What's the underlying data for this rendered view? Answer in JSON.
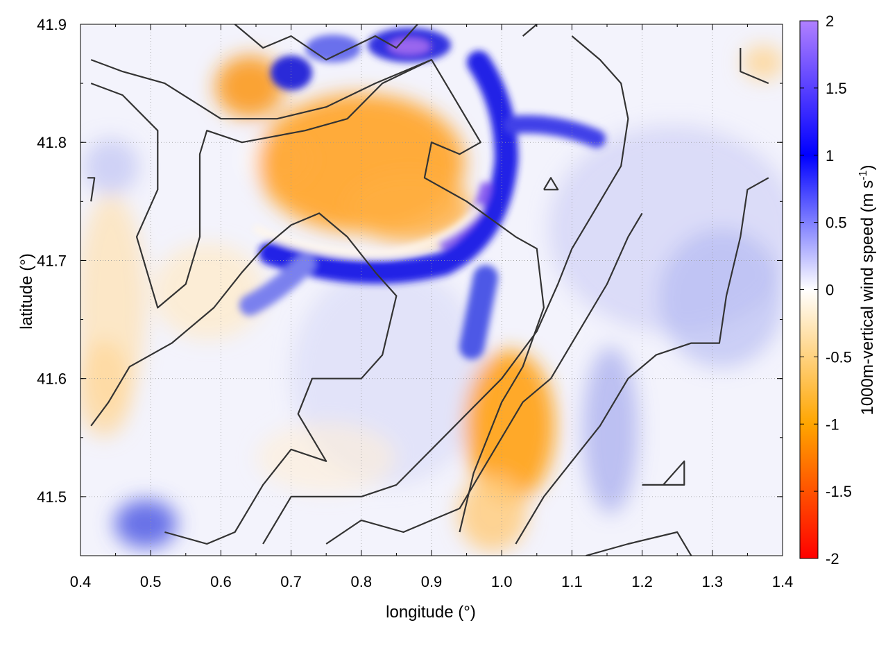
{
  "chart_data": {
    "type": "heatmap",
    "title": "",
    "xlabel": "longitude (°)",
    "ylabel": "latitude (°)",
    "xlim": [
      0.4,
      1.4
    ],
    "ylim": [
      41.45,
      41.9
    ],
    "x_ticks": [
      "0.4",
      "0.5",
      "0.6",
      "0.7",
      "0.8",
      "0.9",
      "1.0",
      "1.1",
      "1.2",
      "1.3",
      "1.4"
    ],
    "y_ticks": [
      "41.5",
      "41.6",
      "41.7",
      "41.8",
      "41.9"
    ],
    "grid": true,
    "colorbar": {
      "label_main": "1000m-vertical wind speed (m s",
      "label_sup": "-1",
      "label_close": ")",
      "range": [
        -2,
        2
      ],
      "ticks": [
        "-2",
        "-1.5",
        "-1",
        "-0.5",
        "0",
        "0.5",
        "1",
        "1.5",
        "2"
      ],
      "colors": [
        "#ff0000",
        "#ffa500",
        "#ffffff",
        "#0000ff",
        "#b080ff"
      ]
    },
    "features": {
      "circular_updraft_band": {
        "center_lon": 0.86,
        "center_lat": 41.81,
        "radius_deg": 0.13,
        "peak_w": 1.7
      },
      "downdraft_inside_ring": {
        "center_lon": 0.83,
        "center_lat": 41.79,
        "peak_w": -0.9
      },
      "downdraft_southeast": {
        "center_lon": 1.0,
        "center_lat": 41.58,
        "peak_w": -1.0
      },
      "updraft_north": {
        "center_lon": 0.86,
        "center_lat": 41.88,
        "peak_w": 1.7
      },
      "updraft_southwest": {
        "center_lon": 0.5,
        "center_lat": 41.47,
        "peak_w": 0.9
      }
    },
    "contours": [
      [
        [
          0.415,
          41.87
        ],
        [
          0.46,
          41.86
        ],
        [
          0.52,
          41.85
        ],
        [
          0.6,
          41.82
        ],
        [
          0.68,
          41.82
        ],
        [
          0.75,
          41.83
        ],
        [
          0.82,
          41.85
        ],
        [
          0.9,
          41.87
        ]
      ],
      [
        [
          0.415,
          41.85
        ],
        [
          0.46,
          41.84
        ],
        [
          0.51,
          41.81
        ],
        [
          0.51,
          41.76
        ],
        [
          0.48,
          41.72
        ],
        [
          0.51,
          41.66
        ],
        [
          0.55,
          41.68
        ],
        [
          0.57,
          41.72
        ],
        [
          0.57,
          41.79
        ],
        [
          0.58,
          41.81
        ],
        [
          0.63,
          41.8
        ],
        [
          0.72,
          41.81
        ],
        [
          0.78,
          41.82
        ],
        [
          0.83,
          41.85
        ],
        [
          0.9,
          41.87
        ],
        [
          0.93,
          41.84
        ],
        [
          0.97,
          41.8
        ],
        [
          0.94,
          41.79
        ],
        [
          0.9,
          41.8
        ],
        [
          0.89,
          41.77
        ],
        [
          0.95,
          41.75
        ],
        [
          1.02,
          41.72
        ],
        [
          1.05,
          41.71
        ],
        [
          1.06,
          41.66
        ],
        [
          1.03,
          41.61
        ],
        [
          1.0,
          41.58
        ],
        [
          0.96,
          41.52
        ],
        [
          0.94,
          41.47
        ]
      ],
      [
        [
          0.415,
          41.56
        ],
        [
          0.44,
          41.58
        ],
        [
          0.47,
          41.61
        ],
        [
          0.53,
          41.63
        ],
        [
          0.59,
          41.66
        ],
        [
          0.63,
          41.69
        ],
        [
          0.66,
          41.71
        ],
        [
          0.7,
          41.73
        ],
        [
          0.74,
          41.74
        ],
        [
          0.78,
          41.72
        ],
        [
          0.82,
          41.69
        ],
        [
          0.85,
          41.67
        ],
        [
          0.83,
          41.62
        ],
        [
          0.8,
          41.6
        ],
        [
          0.73,
          41.6
        ],
        [
          0.71,
          41.57
        ],
        [
          0.75,
          41.53
        ],
        [
          0.7,
          41.54
        ],
        [
          0.66,
          41.51
        ],
        [
          0.64,
          41.49
        ],
        [
          0.62,
          41.47
        ],
        [
          0.58,
          41.46
        ],
        [
          0.52,
          41.47
        ]
      ],
      [
        [
          0.62,
          41.9
        ],
        [
          0.66,
          41.88
        ],
        [
          0.7,
          41.89
        ],
        [
          0.75,
          41.87
        ],
        [
          0.82,
          41.89
        ],
        [
          0.85,
          41.88
        ],
        [
          0.88,
          41.9
        ]
      ],
      [
        [
          0.66,
          41.46
        ],
        [
          0.7,
          41.5
        ],
        [
          0.75,
          41.5
        ],
        [
          0.8,
          41.5
        ],
        [
          0.85,
          41.51
        ],
        [
          0.9,
          41.54
        ],
        [
          0.95,
          41.57
        ],
        [
          1.0,
          41.6
        ],
        [
          1.05,
          41.64
        ],
        [
          1.08,
          41.68
        ],
        [
          1.1,
          41.71
        ],
        [
          1.13,
          41.74
        ],
        [
          1.17,
          41.78
        ],
        [
          1.18,
          41.82
        ],
        [
          1.17,
          41.85
        ],
        [
          1.14,
          41.87
        ],
        [
          1.1,
          41.89
        ]
      ],
      [
        [
          0.75,
          41.46
        ],
        [
          0.8,
          41.48
        ],
        [
          0.86,
          41.47
        ],
        [
          0.9,
          41.48
        ],
        [
          0.94,
          41.49
        ],
        [
          0.97,
          41.52
        ],
        [
          1.0,
          41.55
        ],
        [
          1.03,
          41.58
        ],
        [
          1.07,
          41.6
        ],
        [
          1.11,
          41.64
        ],
        [
          1.15,
          41.68
        ],
        [
          1.18,
          41.72
        ],
        [
          1.2,
          41.74
        ]
      ],
      [
        [
          1.02,
          41.46
        ],
        [
          1.06,
          41.5
        ],
        [
          1.1,
          41.53
        ],
        [
          1.14,
          41.56
        ],
        [
          1.18,
          41.6
        ],
        [
          1.22,
          41.62
        ],
        [
          1.27,
          41.63
        ],
        [
          1.31,
          41.63
        ],
        [
          1.32,
          41.67
        ],
        [
          1.34,
          41.72
        ],
        [
          1.35,
          41.76
        ],
        [
          1.38,
          41.77
        ]
      ],
      [
        [
          1.12,
          41.45
        ],
        [
          1.18,
          41.46
        ],
        [
          1.25,
          41.47
        ],
        [
          1.27,
          41.45
        ]
      ],
      [
        [
          1.2,
          41.51
        ],
        [
          1.23,
          41.51
        ],
        [
          1.26,
          41.53
        ],
        [
          1.26,
          41.51
        ],
        [
          1.2,
          41.51
        ]
      ],
      [
        [
          1.06,
          41.76
        ],
        [
          1.08,
          41.76
        ],
        [
          1.07,
          41.77
        ],
        [
          1.06,
          41.76
        ]
      ],
      [
        [
          1.34,
          41.88
        ],
        [
          1.34,
          41.86
        ],
        [
          1.38,
          41.85
        ]
      ],
      [
        [
          0.415,
          41.75
        ],
        [
          0.42,
          41.77
        ],
        [
          0.41,
          41.77
        ]
      ],
      [
        [
          1.03,
          41.89
        ],
        [
          1.05,
          41.9
        ]
      ]
    ]
  }
}
